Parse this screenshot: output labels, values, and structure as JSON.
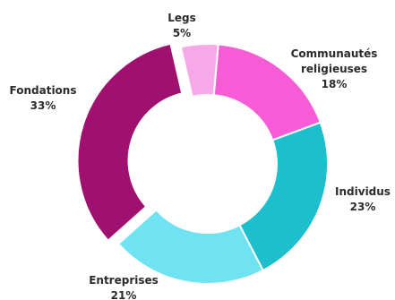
{
  "chart_data": {
    "type": "pie",
    "variant": "donut",
    "title": "",
    "legend": "none",
    "slices": [
      {
        "label": "Communautés religieuses",
        "lines": [
          "Communautés",
          "religieuses"
        ],
        "value": 18,
        "value_label": "18%",
        "color": "#F75BD5",
        "exploded": false
      },
      {
        "label": "Individus",
        "lines": [
          "Individus"
        ],
        "value": 23,
        "value_label": "23%",
        "color": "#1DBFCC",
        "exploded": false
      },
      {
        "label": "Entreprises",
        "lines": [
          "Entreprises"
        ],
        "value": 21,
        "value_label": "21%",
        "color": "#6FE3F2",
        "exploded": false
      },
      {
        "label": "Fondations",
        "lines": [
          "Fondations"
        ],
        "value": 33,
        "value_label": "33%",
        "color": "#A0106F",
        "exploded": true
      },
      {
        "label": "Legs",
        "lines": [
          "Legs"
        ],
        "value": 5,
        "value_label": "5%",
        "color": "#F7A8E8",
        "exploded": false
      }
    ]
  }
}
